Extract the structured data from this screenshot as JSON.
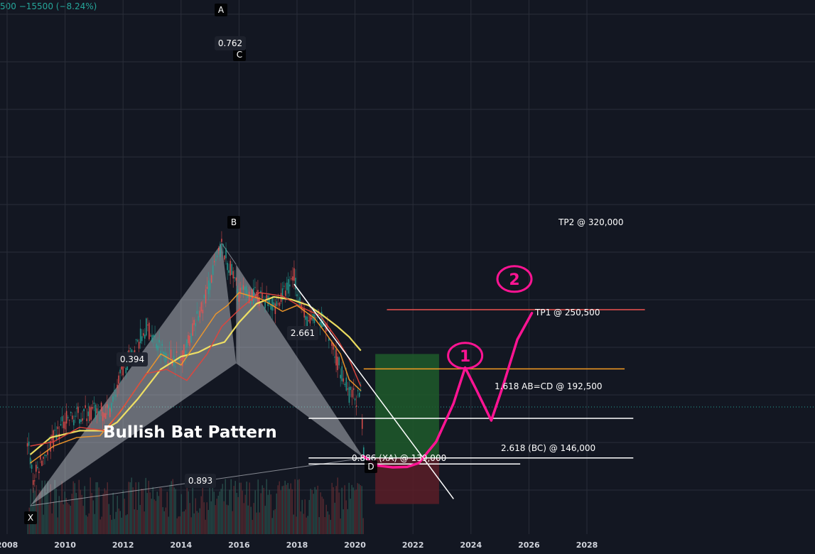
{
  "header": {
    "change_text": "500  −15500 (−8.24%)"
  },
  "colors": {
    "background": "#131722",
    "grid": "#2a2e39",
    "up_candle": "#26a69a",
    "down_candle": "#ef5350",
    "ma_yellow": "#f5e663",
    "ma_orange": "#f0982a",
    "ma_red": "#e0443c",
    "pattern_fill": "#d1d4dc",
    "annotation_pink": "#ff1493",
    "tp1_line": "#f59b23",
    "tp2_line": "#ef5350",
    "long_zone": "#1e5b2a",
    "stop_zone": "#5b1d27"
  },
  "chart_data": {
    "type": "line",
    "x_ticks": [
      "2008",
      "2010",
      "2012",
      "2014",
      "2016",
      "2018",
      "2020",
      "2022",
      "2024",
      "2026",
      "2028"
    ],
    "pattern": {
      "name": "Bullish Bat Pattern",
      "points": [
        {
          "label": "X",
          "x": 2008.8,
          "y": 90000
        },
        {
          "label": "A",
          "x": 2015.4,
          "y": 398000
        },
        {
          "label": "B",
          "x": 2015.9,
          "y": 257000
        },
        {
          "label": "C",
          "x": 2015.9,
          "y": 373000
        },
        {
          "label": "D",
          "x": 2020.3,
          "y": 146000
        }
      ],
      "ratios": [
        {
          "value": "0.762",
          "x": 2015.6,
          "y": 388000
        },
        {
          "value": "0.394",
          "x": 2011.7,
          "y": 178000
        },
        {
          "value": "2.661",
          "x": 2018.2,
          "y": 196000
        },
        {
          "value": "0.893",
          "x": 2014.6,
          "y": 116000
        }
      ]
    },
    "levels": [
      {
        "label": "TP2 @ 320,000",
        "value": 320000,
        "x_start": 2021.1,
        "x_end": 2030.0
      },
      {
        "label": "TP1 @ 250,500",
        "value": 250500,
        "x_start": 2020.3,
        "x_end": 2029.3
      },
      {
        "label": "1.618 AB=CD @ 192,500",
        "value": 192500,
        "x_start": 2018.4,
        "x_end": 2029.6
      },
      {
        "label": "2.618 (BC) @ 146,000",
        "value": 146000,
        "x_start": 2018.4,
        "x_end": 2029.6
      },
      {
        "label": "0.886 (XA) @ 139,000",
        "value": 139000,
        "x_start": 2018.4,
        "x_end": 2025.7
      }
    ],
    "trendline": {
      "x1": 2017.9,
      "y1": 350000,
      "x2": 2023.4,
      "y2": 98000
    },
    "projection_path": [
      [
        2020.3,
        148000
      ],
      [
        2020.7,
        137500
      ],
      [
        2021.3,
        135000
      ],
      [
        2021.8,
        135500
      ],
      [
        2022.2,
        140000
      ],
      [
        2022.8,
        165000
      ],
      [
        2023.4,
        210000
      ],
      [
        2023.8,
        252000
      ],
      [
        2024.2,
        225000
      ],
      [
        2024.7,
        190000
      ],
      [
        2025.1,
        230000
      ],
      [
        2025.6,
        285000
      ],
      [
        2026.1,
        316000
      ]
    ],
    "circle_annotations": [
      {
        "label": "1",
        "x": 2023.8,
        "y": 266000
      },
      {
        "label": "2",
        "x": 2025.5,
        "y": 356000
      }
    ],
    "trade_zones": {
      "long_top": 268000,
      "entry": 146000,
      "stop": 92000,
      "x_start": 2020.7,
      "x_end": 2022.9
    },
    "moving_averages": [
      {
        "name": "",
        "color_key": "ma_yellow",
        "points": [
          [
            2008.8,
            150000
          ],
          [
            2009.5,
            170000
          ],
          [
            2010.5,
            178000
          ],
          [
            2011.3,
            178000
          ],
          [
            2011.8,
            188000
          ],
          [
            2012.5,
            215000
          ],
          [
            2013.3,
            250000
          ],
          [
            2014.0,
            265000
          ],
          [
            2014.6,
            270000
          ],
          [
            2015.0,
            277000
          ],
          [
            2015.5,
            282000
          ],
          [
            2016.0,
            305000
          ],
          [
            2016.6,
            327000
          ],
          [
            2017.2,
            335000
          ],
          [
            2017.8,
            332000
          ],
          [
            2018.4,
            325000
          ],
          [
            2018.9,
            313000
          ],
          [
            2019.4,
            300000
          ],
          [
            2019.8,
            288000
          ],
          [
            2020.2,
            272000
          ]
        ]
      },
      {
        "name": "",
        "color_key": "ma_orange",
        "points": [
          [
            2008.8,
            140000
          ],
          [
            2009.6,
            160000
          ],
          [
            2010.4,
            170000
          ],
          [
            2011.2,
            172000
          ],
          [
            2011.9,
            200000
          ],
          [
            2012.6,
            235000
          ],
          [
            2013.3,
            268000
          ],
          [
            2014.0,
            255000
          ],
          [
            2014.7,
            290000
          ],
          [
            2015.2,
            315000
          ],
          [
            2015.6,
            325000
          ],
          [
            2016.0,
            340000
          ],
          [
            2016.8,
            332000
          ],
          [
            2017.5,
            318000
          ],
          [
            2018.0,
            325000
          ],
          [
            2018.6,
            310000
          ],
          [
            2019.0,
            292000
          ],
          [
            2019.5,
            268000
          ],
          [
            2019.8,
            238000
          ],
          [
            2020.2,
            225000
          ]
        ]
      },
      {
        "name": "",
        "color_key": "ma_red",
        "points": [
          [
            2008.8,
            160000
          ],
          [
            2009.6,
            165000
          ],
          [
            2010.5,
            182000
          ],
          [
            2011.4,
            178000
          ],
          [
            2012.1,
            210000
          ],
          [
            2012.8,
            245000
          ],
          [
            2013.5,
            250000
          ],
          [
            2014.2,
            237000
          ],
          [
            2014.9,
            268000
          ],
          [
            2015.4,
            300000
          ],
          [
            2016.0,
            320000
          ],
          [
            2016.7,
            340000
          ],
          [
            2017.5,
            336000
          ],
          [
            2018.2,
            322000
          ],
          [
            2018.8,
            313000
          ],
          [
            2019.4,
            285000
          ],
          [
            2019.8,
            262000
          ],
          [
            2020.2,
            230000
          ]
        ]
      }
    ]
  }
}
